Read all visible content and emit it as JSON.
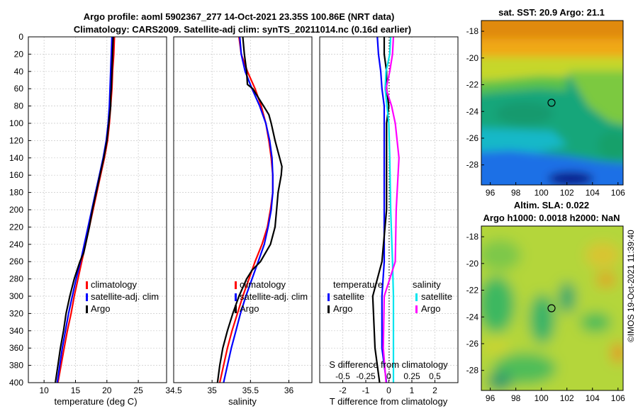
{
  "title": {
    "line1": "Argo profile: aoml 5902367_277 14-Oct-2021 23.35S 100.86E (NRT data)",
    "line2": "Climatology: CARS2009. Satellite-adj clim: synTS_20211014.nc (0.16d earlier)"
  },
  "depth_ticks": [
    "0",
    "20",
    "40",
    "60",
    "80",
    "100",
    "120",
    "140",
    "160",
    "180",
    "200",
    "220",
    "240",
    "260",
    "280",
    "300",
    "320",
    "340",
    "360",
    "380",
    "400"
  ],
  "colors": {
    "climatology": "#ff0000",
    "satellite": "#0000ff",
    "argo": "#000000",
    "sal_sat": "#00e5ee",
    "sal_argo": "#ff00ff"
  },
  "chart_data": [
    {
      "type": "line",
      "name": "temperature",
      "xlabel": "temperature (deg C)",
      "xlim": [
        7.5,
        29.5
      ],
      "ylim": [
        400,
        0
      ],
      "xticks": [
        "10",
        "15",
        "20",
        "25"
      ],
      "xtick_values": [
        10,
        15,
        20,
        25
      ],
      "legend": [
        "climatology",
        "satellite-adj. clim",
        "Argo"
      ],
      "series": [
        {
          "name": "climatology",
          "depth": [
            0,
            20,
            40,
            60,
            80,
            100,
            120,
            140,
            160,
            180,
            200,
            220,
            240,
            260,
            280,
            300,
            320,
            340,
            360,
            380,
            400
          ],
          "values": [
            21.2,
            21.1,
            20.9,
            20.8,
            20.6,
            20.4,
            20.1,
            19.6,
            19.0,
            18.4,
            17.8,
            17.2,
            16.6,
            16.0,
            15.4,
            14.8,
            14.3,
            13.7,
            13.2,
            12.7,
            12.2
          ]
        },
        {
          "name": "satellite-adj. clim",
          "depth": [
            0,
            20,
            40,
            60,
            80,
            100,
            120,
            140,
            160,
            180,
            200,
            220,
            240,
            260,
            280,
            300,
            320,
            340,
            360,
            380,
            400
          ],
          "values": [
            20.8,
            20.7,
            20.6,
            20.5,
            20.4,
            20.2,
            19.9,
            19.4,
            18.8,
            18.2,
            17.6,
            17.0,
            16.4,
            15.8,
            15.1,
            14.5,
            13.9,
            13.4,
            12.9,
            12.5,
            12.1
          ]
        },
        {
          "name": "Argo",
          "depth": [
            0,
            20,
            40,
            60,
            70,
            80,
            100,
            120,
            140,
            160,
            180,
            200,
            220,
            240,
            250,
            260,
            280,
            300,
            320,
            340,
            360,
            380,
            400
          ],
          "values": [
            21.0,
            20.9,
            20.8,
            20.7,
            20.6,
            20.6,
            20.3,
            20.0,
            19.5,
            18.9,
            18.3,
            17.7,
            17.2,
            16.6,
            16.3,
            15.7,
            14.8,
            14.1,
            13.5,
            13.1,
            12.6,
            12.2,
            11.8
          ]
        }
      ]
    },
    {
      "type": "line",
      "name": "salinity",
      "xlabel": "salinity",
      "xlim": [
        34.5,
        36.3
      ],
      "ylim": [
        400,
        0
      ],
      "xticks": [
        "34.5",
        "35",
        "35.5",
        "36"
      ],
      "xtick_values": [
        34.5,
        35,
        35.5,
        36
      ],
      "legend": [
        "climatology",
        "satellite-adj. clim",
        "Argo"
      ],
      "series": [
        {
          "name": "climatology",
          "depth": [
            0,
            20,
            40,
            60,
            80,
            100,
            120,
            140,
            160,
            180,
            200,
            220,
            240,
            260,
            280,
            300,
            320,
            340,
            360,
            380,
            400
          ],
          "values": [
            35.35,
            35.38,
            35.46,
            35.56,
            35.64,
            35.7,
            35.74,
            35.77,
            35.79,
            35.79,
            35.76,
            35.72,
            35.65,
            35.56,
            35.48,
            35.4,
            35.33,
            35.26,
            35.2,
            35.15,
            35.1
          ]
        },
        {
          "name": "satellite-adj. clim",
          "depth": [
            0,
            20,
            40,
            60,
            80,
            100,
            120,
            140,
            160,
            180,
            200,
            220,
            240,
            260,
            280,
            300,
            320,
            340,
            360,
            380,
            400
          ],
          "values": [
            35.36,
            35.38,
            35.43,
            35.52,
            35.62,
            35.7,
            35.75,
            35.78,
            35.79,
            35.79,
            35.77,
            35.73,
            35.68,
            35.6,
            35.52,
            35.44,
            35.37,
            35.31,
            35.25,
            35.2,
            35.15
          ]
        },
        {
          "name": "Argo",
          "depth": [
            0,
            20,
            40,
            55,
            60,
            70,
            80,
            90,
            100,
            120,
            140,
            150,
            160,
            170,
            180,
            200,
            220,
            240,
            260,
            270,
            280,
            300,
            320,
            340,
            360,
            380,
            400
          ],
          "values": [
            35.4,
            35.42,
            35.45,
            35.46,
            35.53,
            35.6,
            35.67,
            35.74,
            35.77,
            35.82,
            35.88,
            35.91,
            35.9,
            35.88,
            35.86,
            35.84,
            35.82,
            35.76,
            35.63,
            35.52,
            35.45,
            35.35,
            35.27,
            35.2,
            35.14,
            35.1,
            35.07
          ]
        }
      ]
    },
    {
      "type": "line",
      "name": "difference from climatology",
      "xlabel": "T difference from climatology",
      "xlabel_top": "S difference from climatology",
      "xlim": [
        -3,
        3
      ],
      "ylim": [
        400,
        0
      ],
      "xticks": [
        "-2",
        "-1",
        "0",
        "1",
        "2"
      ],
      "xtick_values": [
        -2,
        -1,
        0,
        1,
        2
      ],
      "xticks_top": [
        "-0.5",
        "-0.25",
        "0",
        "0.25",
        "0.5"
      ],
      "xtick_top_values": [
        -0.5,
        -0.25,
        0,
        0.25,
        0.5
      ],
      "legend_temperature_title": "temperature",
      "legend_salinity_title": "salinity",
      "legend": [
        "satellite",
        "Argo",
        "satellite",
        "Argo"
      ],
      "series": [
        {
          "name": "T satellite",
          "depth": [
            0,
            20,
            40,
            60,
            80,
            100,
            140,
            200,
            260,
            300,
            360,
            400
          ],
          "values": [
            -0.5,
            -0.45,
            -0.35,
            -0.3,
            -0.2,
            -0.2,
            -0.2,
            -0.2,
            -0.2,
            -0.3,
            -0.3,
            -0.1
          ]
        },
        {
          "name": "T Argo",
          "depth": [
            0,
            20,
            40,
            60,
            80,
            100,
            140,
            200,
            260,
            300,
            360,
            400
          ],
          "values": [
            -0.2,
            -0.2,
            -0.1,
            -0.1,
            0,
            -0.1,
            -0.1,
            -0.1,
            -0.3,
            -0.7,
            -0.6,
            -0.4
          ]
        },
        {
          "name": "S satellite",
          "depth": [
            0,
            20,
            40,
            60,
            80,
            100,
            140,
            200,
            260,
            300,
            360,
            400
          ],
          "values": [
            0.02,
            0.01,
            -0.03,
            -0.04,
            -0.02,
            0,
            0.01,
            0.02,
            0.04,
            0.05,
            0.05,
            0.05
          ]
        },
        {
          "name": "S Argo",
          "depth": [
            0,
            20,
            40,
            60,
            80,
            100,
            140,
            200,
            260,
            300,
            360,
            400
          ],
          "values": [
            0.05,
            0.04,
            0.01,
            -0.03,
            0.03,
            0.07,
            0.11,
            0.08,
            0.07,
            -0.05,
            -0.06,
            -0.03
          ]
        }
      ]
    },
    {
      "type": "heatmap",
      "name": "sat. SST",
      "title": "sat. SST: 20.9 Argo: 21.1",
      "xlim": [
        95.3,
        106.4
      ],
      "ylim": [
        -29.5,
        -17.2
      ],
      "xticks": [
        "96",
        "98",
        "100",
        "102",
        "104",
        "106"
      ],
      "xtick_values": [
        96,
        98,
        100,
        102,
        104,
        106
      ],
      "yticks": [
        "-18",
        "-20",
        "-22",
        "-24",
        "-26",
        "-28"
      ],
      "ytick_values": [
        -18,
        -20,
        -22,
        -24,
        -26,
        -28
      ],
      "marker": [
        100.86,
        -23.35
      ]
    },
    {
      "type": "heatmap",
      "name": "Altim. SLA",
      "title_line1": "Altim. SLA: 0.022",
      "title_line2": "Argo h1000: 0.0018 h2000: NaN",
      "xlim": [
        95.3,
        106.4
      ],
      "ylim": [
        -29.5,
        -17.2
      ],
      "xticks": [
        "96",
        "98",
        "100",
        "102",
        "104",
        "106"
      ],
      "xtick_values": [
        96,
        98,
        100,
        102,
        104,
        106
      ],
      "yticks": [
        "-18",
        "-20",
        "-22",
        "-24",
        "-26",
        "-28"
      ],
      "ytick_values": [
        -18,
        -20,
        -22,
        -24,
        -26,
        -28
      ],
      "marker": [
        100.86,
        -23.35
      ]
    }
  ],
  "footer": "©IMOS 19-Oct-2021 11:39:40"
}
